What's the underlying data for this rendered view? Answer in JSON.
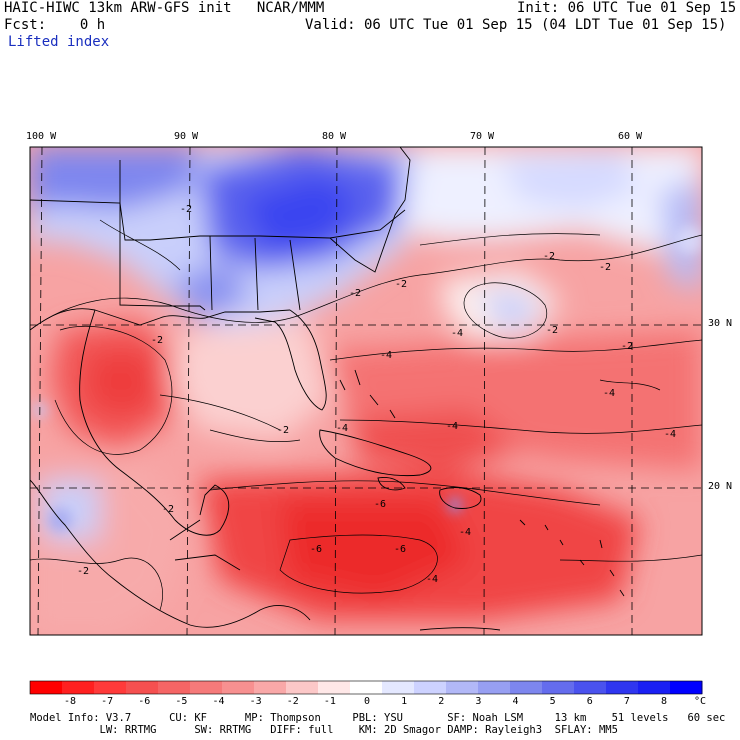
{
  "header": {
    "model_title": "HAIC-HIWC 13km ARW-GFS init   NCAR/MMM",
    "init": "Init: 06 UTC Tue 01 Sep 15",
    "fcst": "Fcst:    0 h",
    "valid": "Valid: 06 UTC Tue 01 Sep 15 (04 LDT Tue 01 Sep 15)",
    "field": "Lifted index"
  },
  "map": {
    "lon_labels": [
      "100 W",
      "90 W",
      "80 W",
      "70 W",
      "60 W"
    ],
    "lat_labels": [
      "30 N",
      "20 N"
    ],
    "contour_labels": [
      "-2",
      "-2",
      "-2",
      "-2",
      "-2",
      "-2",
      "-2",
      "-2",
      "-2",
      "-2",
      "-2",
      "-4",
      "-4",
      "-4",
      "-4",
      "-4",
      "-4",
      "-4",
      "-4",
      "-6",
      "-6",
      "-6"
    ],
    "colors": {
      "neg_strong": "#ff0000",
      "neg_mid": "#f25a5a",
      "neg_light": "#f8b0b0",
      "neutral": "#ffffff",
      "pos_light": "#c8d0ff",
      "pos_mid": "#6d78ef",
      "pos_strong": "#0000ff"
    }
  },
  "colorbar": {
    "ticks": [
      "-8",
      "-7",
      "-6",
      "-5",
      "-4",
      "-3",
      "-2",
      "-1",
      "0",
      "1",
      "2",
      "3",
      "4",
      "5",
      "6",
      "7",
      "8"
    ],
    "unit": "°C",
    "colors": [
      "#ff0000",
      "#ff2020",
      "#ff3a3a",
      "#f55050",
      "#f56565",
      "#f57a7a",
      "#f79090",
      "#f9a8a8",
      "#fcc8c8",
      "#ffe8e8",
      "#ffffff",
      "#e4e8ff",
      "#cdd2ff",
      "#b2b8f7",
      "#979ff2",
      "#7d86ee",
      "#646ced",
      "#4a52ee",
      "#2f36f0",
      "#1a1ff4",
      "#0000ff"
    ]
  },
  "footer": {
    "line1": "Model Info: V3.7      CU: KF      MP: Thompson     PBL: YSU       SF: Noah LSM     13 km    51 levels   60 sec",
    "line2": "           LW: RRTMG      SW: RRTMG   DIFF: full    KM: 2D Smagor DAMP: Rayleigh3  SFLAY: MM5"
  }
}
